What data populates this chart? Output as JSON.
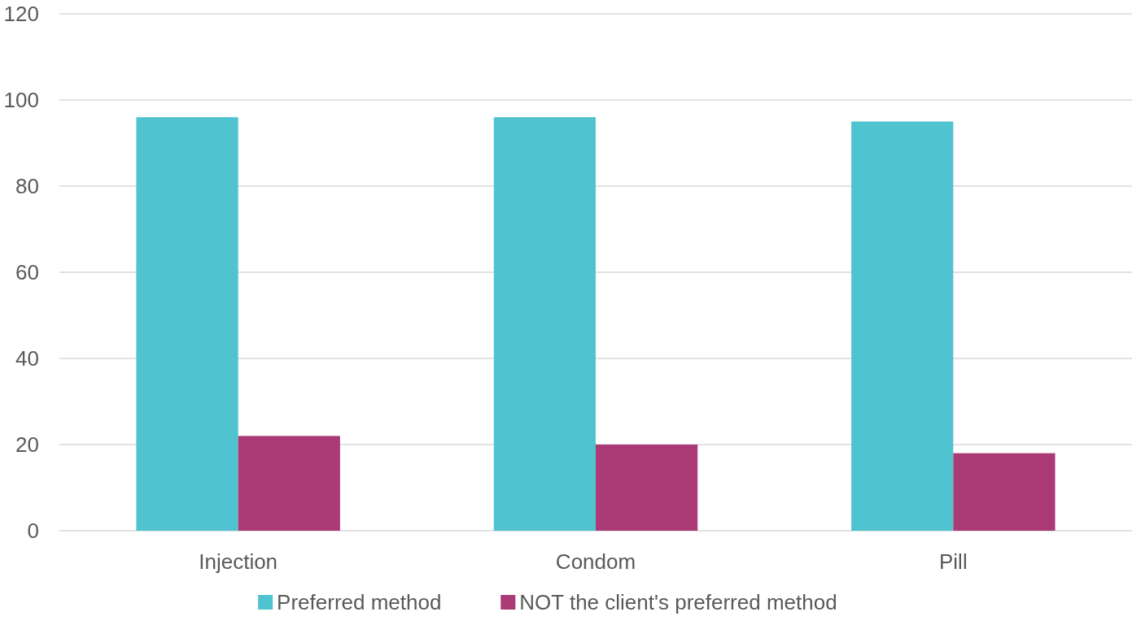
{
  "chart_data": {
    "type": "bar",
    "categories": [
      "Injection",
      "Condom",
      "Pill"
    ],
    "series": [
      {
        "name": "Preferred method",
        "color": "#4fc3cf",
        "values": [
          96,
          96,
          95
        ]
      },
      {
        "name": "NOT the client's preferred method",
        "color": "#a93a75",
        "values": [
          22,
          20,
          18
        ]
      }
    ],
    "ylim": [
      0,
      120
    ],
    "yticks": [
      0,
      20,
      40,
      60,
      80,
      100,
      120
    ],
    "grid": "y",
    "legend": "bottom"
  }
}
